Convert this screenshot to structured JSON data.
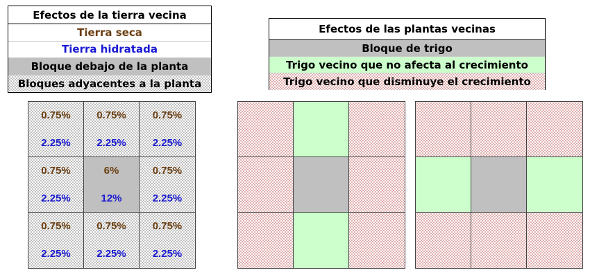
{
  "soil_legend": {
    "title": "Efectos de la tierra vecina",
    "dry_soil": "Tierra seca",
    "hydrated_soil": "Tierra hidratada",
    "block_below": "Bloque debajo de la planta",
    "adjacent_blocks": "Bloques adyacentes a la planta"
  },
  "plant_legend": {
    "title": "Efectos de las plantas vecinas",
    "wheat_block": "Bloque de trigo",
    "neutral_neighbor": "Trigo vecino que no afecta al crecimiento",
    "reducing_neighbor": "Trigo vecino que disminuye el crecimiento"
  },
  "soil_grid": {
    "cells": [
      {
        "dry": "0.75%",
        "wet": "2.25%",
        "type": "adjacent"
      },
      {
        "dry": "0.75%",
        "wet": "2.25%",
        "type": "adjacent"
      },
      {
        "dry": "0.75%",
        "wet": "2.25%",
        "type": "adjacent"
      },
      {
        "dry": "0.75%",
        "wet": "2.25%",
        "type": "adjacent"
      },
      {
        "dry": "6%",
        "wet": "12%",
        "type": "below"
      },
      {
        "dry": "0.75%",
        "wet": "2.25%",
        "type": "adjacent"
      },
      {
        "dry": "0.75%",
        "wet": "2.25%",
        "type": "adjacent"
      },
      {
        "dry": "0.75%",
        "wet": "2.25%",
        "type": "adjacent"
      },
      {
        "dry": "0.75%",
        "wet": "2.25%",
        "type": "adjacent"
      }
    ]
  },
  "wheat_grids": [
    {
      "cells": [
        "reducing",
        "neutral",
        "reducing",
        "reducing",
        "wheat",
        "reducing",
        "reducing",
        "neutral",
        "reducing"
      ]
    },
    {
      "cells": [
        "reducing",
        "reducing",
        "reducing",
        "neutral",
        "wheat",
        "neutral",
        "reducing",
        "reducing",
        "reducing"
      ]
    }
  ],
  "colors": {
    "dry_soil_text": "#6b3f12",
    "hydrated_soil_text": "#1a1ad2",
    "wheat_block": "#c0c0c0",
    "neutral_neighbor": "#ccffcc",
    "reducing_neighbor_dots": "#b23a3a"
  }
}
